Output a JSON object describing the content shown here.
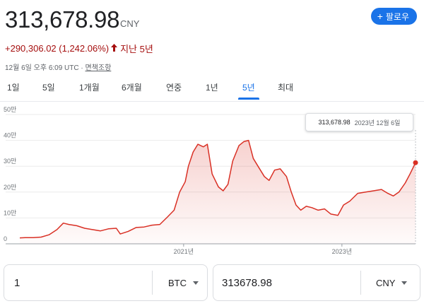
{
  "header": {
    "price": "313,678.98",
    "currency": "CNY",
    "change": "+290,306.02 (1,242.06%)",
    "period": "지난 5년",
    "timestamp": "12월 6일 오후 6:09 UTC · ",
    "disclaimer": "면책조항",
    "follow_label": "팔로우"
  },
  "tabs": [
    "1일",
    "5일",
    "1개월",
    "6개월",
    "연중",
    "1년",
    "5년",
    "최대"
  ],
  "active_tab": "5년",
  "tooltip": {
    "value": "313,678.98",
    "date": "2023년 12월 6일"
  },
  "converter": {
    "from_value": "1",
    "from_unit": "BTC",
    "to_value": "313678.98",
    "to_unit": "CNY"
  },
  "colors": {
    "line": "#d93025",
    "change": "#a50e0e",
    "accent": "#1a73e8"
  },
  "chart_data": {
    "type": "area",
    "yticks": [
      "0",
      "10만",
      "20만",
      "30만",
      "40만",
      "50만"
    ],
    "ylim": [
      0,
      500000
    ],
    "xticks": [
      {
        "label": "2021년",
        "t": 2021.0
      },
      {
        "label": "2023년",
        "t": 2023.0
      }
    ],
    "xlim": [
      2018.93,
      2023.93
    ],
    "series": [
      {
        "points": [
          [
            2018.93,
            23000
          ],
          [
            2019.0,
            24000
          ],
          [
            2019.1,
            24000
          ],
          [
            2019.2,
            26000
          ],
          [
            2019.3,
            35000
          ],
          [
            2019.4,
            55000
          ],
          [
            2019.48,
            80000
          ],
          [
            2019.55,
            75000
          ],
          [
            2019.65,
            70000
          ],
          [
            2019.75,
            60000
          ],
          [
            2019.85,
            55000
          ],
          [
            2019.95,
            50000
          ],
          [
            2020.05,
            58000
          ],
          [
            2020.15,
            60000
          ],
          [
            2020.2,
            38000
          ],
          [
            2020.3,
            48000
          ],
          [
            2020.4,
            63000
          ],
          [
            2020.5,
            65000
          ],
          [
            2020.6,
            72000
          ],
          [
            2020.7,
            75000
          ],
          [
            2020.8,
            105000
          ],
          [
            2020.88,
            130000
          ],
          [
            2020.95,
            200000
          ],
          [
            2021.02,
            240000
          ],
          [
            2021.06,
            300000
          ],
          [
            2021.12,
            355000
          ],
          [
            2021.18,
            385000
          ],
          [
            2021.25,
            375000
          ],
          [
            2021.3,
            385000
          ],
          [
            2021.36,
            270000
          ],
          [
            2021.44,
            220000
          ],
          [
            2021.5,
            205000
          ],
          [
            2021.56,
            230000
          ],
          [
            2021.62,
            320000
          ],
          [
            2021.7,
            380000
          ],
          [
            2021.76,
            395000
          ],
          [
            2021.82,
            400000
          ],
          [
            2021.88,
            330000
          ],
          [
            2021.94,
            300000
          ],
          [
            2022.02,
            260000
          ],
          [
            2022.08,
            245000
          ],
          [
            2022.15,
            285000
          ],
          [
            2022.22,
            290000
          ],
          [
            2022.3,
            260000
          ],
          [
            2022.36,
            200000
          ],
          [
            2022.42,
            150000
          ],
          [
            2022.48,
            130000
          ],
          [
            2022.55,
            145000
          ],
          [
            2022.62,
            140000
          ],
          [
            2022.7,
            130000
          ],
          [
            2022.78,
            135000
          ],
          [
            2022.86,
            115000
          ],
          [
            2022.95,
            110000
          ],
          [
            2023.02,
            150000
          ],
          [
            2023.1,
            165000
          ],
          [
            2023.2,
            195000
          ],
          [
            2023.3,
            200000
          ],
          [
            2023.4,
            205000
          ],
          [
            2023.5,
            210000
          ],
          [
            2023.58,
            195000
          ],
          [
            2023.65,
            185000
          ],
          [
            2023.72,
            200000
          ],
          [
            2023.8,
            235000
          ],
          [
            2023.86,
            270000
          ],
          [
            2023.93,
            313679
          ]
        ]
      }
    ]
  }
}
